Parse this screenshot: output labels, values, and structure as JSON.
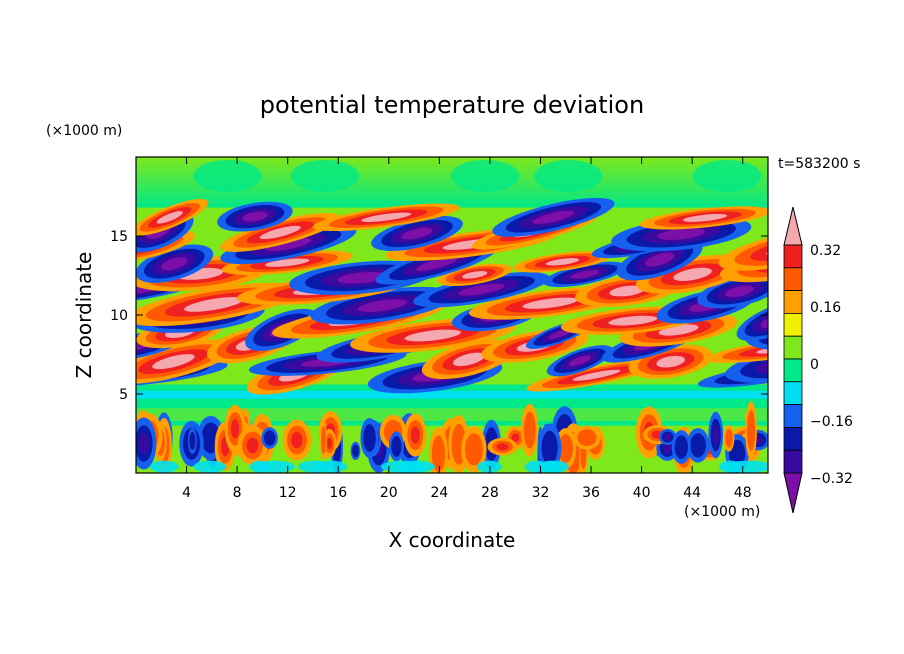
{
  "chart_data": {
    "type": "heatmap",
    "title": "potential temperature deviation",
    "xlabel": "X coordinate",
    "ylabel": "Z coordinate",
    "x_unit": "(×1000 m)",
    "y_unit": "(×1000 m)",
    "time_label": "t=583200 s",
    "xlim": [
      0,
      50
    ],
    "ylim": [
      0,
      20
    ],
    "x_ticks": [
      4,
      8,
      12,
      16,
      20,
      24,
      28,
      32,
      36,
      40,
      44,
      48
    ],
    "y_ticks": [
      5,
      10,
      15
    ],
    "colorbar": {
      "tick_labels": [
        "0.32",
        "0.16",
        "0",
        "-0.16",
        "-0.32"
      ],
      "tick_values": [
        0.32,
        0.16,
        0,
        -0.16,
        -0.32
      ],
      "levels": [
        -0.4,
        -0.32,
        -0.24,
        -0.16,
        -0.08,
        0,
        0.08,
        0.16,
        0.24,
        0.32,
        0.4
      ],
      "colors": [
        "#7b0fa8",
        "#3a0aa0",
        "#0a1aa8",
        "#1660f0",
        "#00e0f0",
        "#00e888",
        "#7ee81a",
        "#f0f000",
        "#ffa000",
        "#ff5a00",
        "#f02020",
        "#f5a8b0"
      ]
    },
    "bands": [
      {
        "z_range": [
          0,
          3
        ],
        "description": "weak mixed anomalies with vertical streaks"
      },
      {
        "z_range": [
          3,
          5.5
        ],
        "value_approx": 0.0
      },
      {
        "z_range": [
          5.5,
          17
        ],
        "description": "strong alternating slanted positive/negative layers",
        "max": 0.4,
        "min": -0.4
      },
      {
        "z_range": [
          17,
          20
        ],
        "value_approx": 0.05
      }
    ]
  }
}
